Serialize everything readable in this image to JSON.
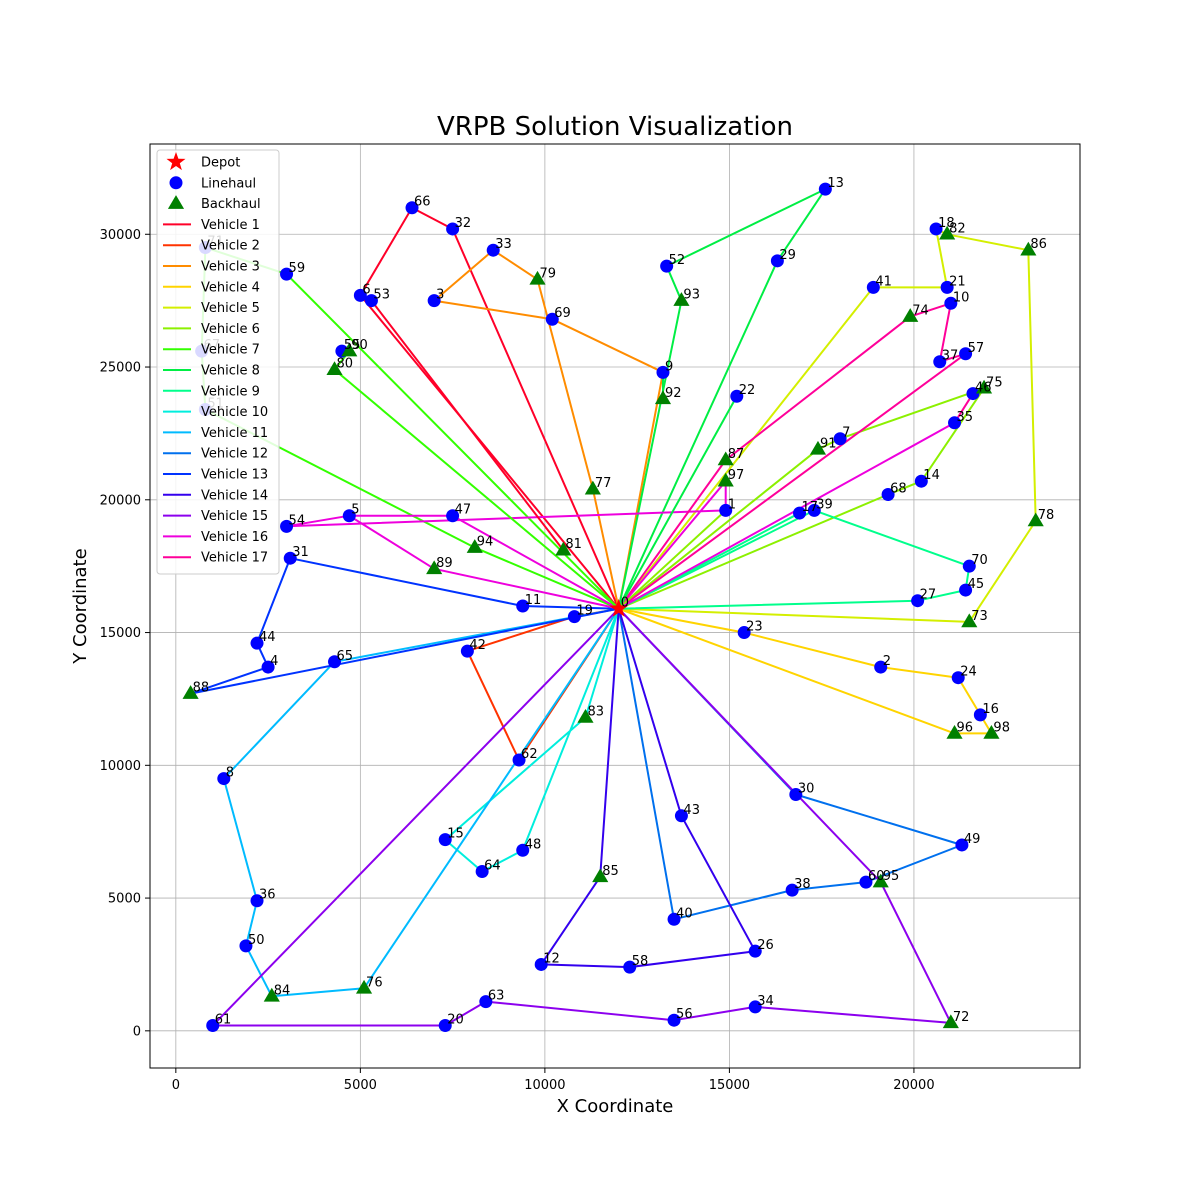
{
  "chart_data": {
    "type": "scatter",
    "title": "VRPB Solution Visualization",
    "xlabel": "X Coordinate",
    "ylabel": "Y Coordinate",
    "xlim": [
      -700,
      24500
    ],
    "ylim": [
      -1400,
      33400
    ],
    "xticks": [
      0,
      5000,
      10000,
      15000,
      20000
    ],
    "yticks": [
      0,
      5000,
      10000,
      15000,
      20000,
      25000,
      30000
    ],
    "grid": true,
    "legend_position": "top-left",
    "depot": {
      "id": "0",
      "x": 12000,
      "y": 15900,
      "color": "#ff0000"
    },
    "node_styles": {
      "linehaul": {
        "label": "Linehaul",
        "color": "#0000ff",
        "marker": "circle"
      },
      "backhaul": {
        "label": "Backhaul",
        "color": "#008000",
        "marker": "triangle"
      },
      "depot": {
        "label": "Depot",
        "color": "#ff0000",
        "marker": "star"
      }
    },
    "nodes": [
      {
        "id": "1",
        "x": 14900,
        "y": 19600,
        "type": "linehaul"
      },
      {
        "id": "2",
        "x": 19100,
        "y": 13700,
        "type": "linehaul"
      },
      {
        "id": "3",
        "x": 7000,
        "y": 27500,
        "type": "linehaul"
      },
      {
        "id": "4",
        "x": 2500,
        "y": 13700,
        "type": "linehaul"
      },
      {
        "id": "5",
        "x": 4700,
        "y": 19400,
        "type": "linehaul"
      },
      {
        "id": "6",
        "x": 5000,
        "y": 27700,
        "type": "linehaul"
      },
      {
        "id": "7",
        "x": 18000,
        "y": 22300,
        "type": "linehaul"
      },
      {
        "id": "8",
        "x": 1300,
        "y": 9500,
        "type": "linehaul"
      },
      {
        "id": "9",
        "x": 13200,
        "y": 24800,
        "type": "linehaul"
      },
      {
        "id": "10",
        "x": 21000,
        "y": 27400,
        "type": "linehaul"
      },
      {
        "id": "11",
        "x": 9400,
        "y": 16000,
        "type": "linehaul"
      },
      {
        "id": "12",
        "x": 9900,
        "y": 2500,
        "type": "linehaul"
      },
      {
        "id": "13",
        "x": 17600,
        "y": 31700,
        "type": "linehaul"
      },
      {
        "id": "14",
        "x": 20200,
        "y": 20700,
        "type": "linehaul"
      },
      {
        "id": "15",
        "x": 7300,
        "y": 7200,
        "type": "linehaul"
      },
      {
        "id": "16",
        "x": 21800,
        "y": 11900,
        "type": "linehaul"
      },
      {
        "id": "17",
        "x": 16900,
        "y": 19500,
        "type": "linehaul"
      },
      {
        "id": "18",
        "x": 20600,
        "y": 30200,
        "type": "linehaul"
      },
      {
        "id": "19",
        "x": 10800,
        "y": 15600,
        "type": "linehaul"
      },
      {
        "id": "20",
        "x": 7300,
        "y": 200,
        "type": "linehaul"
      },
      {
        "id": "21",
        "x": 20900,
        "y": 28000,
        "type": "linehaul"
      },
      {
        "id": "22",
        "x": 15200,
        "y": 23900,
        "type": "linehaul"
      },
      {
        "id": "23",
        "x": 15400,
        "y": 15000,
        "type": "linehaul"
      },
      {
        "id": "24",
        "x": 21200,
        "y": 13300,
        "type": "linehaul"
      },
      {
        "id": "26",
        "x": 15700,
        "y": 3000,
        "type": "linehaul"
      },
      {
        "id": "27",
        "x": 20100,
        "y": 16200,
        "type": "linehaul"
      },
      {
        "id": "29",
        "x": 16300,
        "y": 29000,
        "type": "linehaul"
      },
      {
        "id": "30",
        "x": 16800,
        "y": 8900,
        "type": "linehaul"
      },
      {
        "id": "31",
        "x": 3100,
        "y": 17800,
        "type": "linehaul"
      },
      {
        "id": "32",
        "x": 7500,
        "y": 30200,
        "type": "linehaul"
      },
      {
        "id": "33",
        "x": 8600,
        "y": 29400,
        "type": "linehaul"
      },
      {
        "id": "34",
        "x": 15700,
        "y": 900,
        "type": "linehaul"
      },
      {
        "id": "35",
        "x": 21100,
        "y": 22900,
        "type": "linehaul"
      },
      {
        "id": "36",
        "x": 2200,
        "y": 4900,
        "type": "linehaul"
      },
      {
        "id": "37",
        "x": 20700,
        "y": 25200,
        "type": "linehaul"
      },
      {
        "id": "38",
        "x": 16700,
        "y": 5300,
        "type": "linehaul"
      },
      {
        "id": "39",
        "x": 17300,
        "y": 19600,
        "type": "linehaul"
      },
      {
        "id": "40",
        "x": 13500,
        "y": 4200,
        "type": "linehaul"
      },
      {
        "id": "41",
        "x": 18900,
        "y": 28000,
        "type": "linehaul"
      },
      {
        "id": "42",
        "x": 7900,
        "y": 14300,
        "type": "linehaul"
      },
      {
        "id": "43",
        "x": 13700,
        "y": 8100,
        "type": "linehaul"
      },
      {
        "id": "44",
        "x": 2200,
        "y": 14600,
        "type": "linehaul"
      },
      {
        "id": "45",
        "x": 21400,
        "y": 16600,
        "type": "linehaul"
      },
      {
        "id": "46",
        "x": 21600,
        "y": 24000,
        "type": "linehaul"
      },
      {
        "id": "47",
        "x": 7500,
        "y": 19400,
        "type": "linehaul"
      },
      {
        "id": "48",
        "x": 9400,
        "y": 6800,
        "type": "linehaul"
      },
      {
        "id": "49",
        "x": 21300,
        "y": 7000,
        "type": "linehaul"
      },
      {
        "id": "50",
        "x": 1900,
        "y": 3200,
        "type": "linehaul"
      },
      {
        "id": "51",
        "x": 800,
        "y": 23400,
        "type": "linehaul"
      },
      {
        "id": "52",
        "x": 13300,
        "y": 28800,
        "type": "linehaul"
      },
      {
        "id": "53",
        "x": 5300,
        "y": 27500,
        "type": "linehaul"
      },
      {
        "id": "54",
        "x": 3000,
        "y": 19000,
        "type": "linehaul"
      },
      {
        "id": "55",
        "x": 4500,
        "y": 25600,
        "type": "linehaul"
      },
      {
        "id": "56",
        "x": 13500,
        "y": 400,
        "type": "linehaul"
      },
      {
        "id": "57",
        "x": 21400,
        "y": 25500,
        "type": "linehaul"
      },
      {
        "id": "58",
        "x": 12300,
        "y": 2400,
        "type": "linehaul"
      },
      {
        "id": "59",
        "x": 3000,
        "y": 28500,
        "type": "linehaul"
      },
      {
        "id": "60",
        "x": 18700,
        "y": 5600,
        "type": "linehaul"
      },
      {
        "id": "61",
        "x": 1000,
        "y": 200,
        "type": "linehaul"
      },
      {
        "id": "62",
        "x": 9300,
        "y": 10200,
        "type": "linehaul"
      },
      {
        "id": "63",
        "x": 8400,
        "y": 1100,
        "type": "linehaul"
      },
      {
        "id": "64",
        "x": 8300,
        "y": 6000,
        "type": "linehaul"
      },
      {
        "id": "65",
        "x": 4300,
        "y": 13900,
        "type": "linehaul"
      },
      {
        "id": "66",
        "x": 6400,
        "y": 31000,
        "type": "linehaul"
      },
      {
        "id": "67",
        "x": 700,
        "y": 25600,
        "type": "linehaul"
      },
      {
        "id": "68",
        "x": 19300,
        "y": 20200,
        "type": "linehaul"
      },
      {
        "id": "69",
        "x": 10200,
        "y": 26800,
        "type": "linehaul"
      },
      {
        "id": "70",
        "x": 21500,
        "y": 17500,
        "type": "linehaul"
      },
      {
        "id": "71",
        "x": 800,
        "y": 29500,
        "type": "linehaul"
      },
      {
        "id": "72",
        "x": 21000,
        "y": 300,
        "type": "backhaul"
      },
      {
        "id": "73",
        "x": 21500,
        "y": 15400,
        "type": "backhaul"
      },
      {
        "id": "74",
        "x": 19900,
        "y": 26900,
        "type": "backhaul"
      },
      {
        "id": "75",
        "x": 21900,
        "y": 24200,
        "type": "backhaul"
      },
      {
        "id": "76",
        "x": 5100,
        "y": 1600,
        "type": "backhaul"
      },
      {
        "id": "77",
        "x": 11300,
        "y": 20400,
        "type": "backhaul"
      },
      {
        "id": "78",
        "x": 23300,
        "y": 19200,
        "type": "backhaul"
      },
      {
        "id": "79",
        "x": 9800,
        "y": 28300,
        "type": "backhaul"
      },
      {
        "id": "80",
        "x": 4300,
        "y": 24900,
        "type": "backhaul"
      },
      {
        "id": "81",
        "x": 10500,
        "y": 18100,
        "type": "backhaul"
      },
      {
        "id": "82",
        "x": 20900,
        "y": 30000,
        "type": "backhaul"
      },
      {
        "id": "83",
        "x": 11100,
        "y": 11800,
        "type": "backhaul"
      },
      {
        "id": "84",
        "x": 2600,
        "y": 1300,
        "type": "backhaul"
      },
      {
        "id": "85",
        "x": 11500,
        "y": 5800,
        "type": "backhaul"
      },
      {
        "id": "86",
        "x": 23100,
        "y": 29400,
        "type": "backhaul"
      },
      {
        "id": "87",
        "x": 14900,
        "y": 21500,
        "type": "backhaul"
      },
      {
        "id": "88",
        "x": 400,
        "y": 12700,
        "type": "backhaul"
      },
      {
        "id": "89",
        "x": 7000,
        "y": 17400,
        "type": "backhaul"
      },
      {
        "id": "90",
        "x": 4700,
        "y": 25600,
        "type": "backhaul"
      },
      {
        "id": "91",
        "x": 17400,
        "y": 21900,
        "type": "backhaul"
      },
      {
        "id": "92",
        "x": 13200,
        "y": 23800,
        "type": "backhaul"
      },
      {
        "id": "93",
        "x": 13700,
        "y": 27500,
        "type": "backhaul"
      },
      {
        "id": "94",
        "x": 8100,
        "y": 18200,
        "type": "backhaul"
      },
      {
        "id": "95",
        "x": 19100,
        "y": 5600,
        "type": "backhaul"
      },
      {
        "id": "96",
        "x": 21100,
        "y": 11200,
        "type": "backhaul"
      },
      {
        "id": "97",
        "x": 14900,
        "y": 20700,
        "type": "backhaul"
      },
      {
        "id": "98",
        "x": 22100,
        "y": 11200,
        "type": "backhaul"
      }
    ],
    "series": [
      {
        "name": "Vehicle 1",
        "color": "#ff0029",
        "route": [
          "0",
          "6",
          "66",
          "32",
          "0"
        ]
      },
      {
        "name": "Vehicle 2",
        "color": "#ff3300",
        "route": [
          "0",
          "19",
          "42",
          "62",
          "0"
        ]
      },
      {
        "name": "Vehicle 3",
        "color": "#ff8c00",
        "route": [
          "0",
          "9",
          "69",
          "3",
          "33",
          "79",
          "77",
          "0"
        ]
      },
      {
        "name": "Vehicle 4",
        "color": "#ffd400",
        "route": [
          "0",
          "23",
          "2",
          "24",
          "16",
          "98",
          "96",
          "0"
        ]
      },
      {
        "name": "Vehicle 5",
        "color": "#d4ef00",
        "route": [
          "0",
          "41",
          "21",
          "18",
          "82",
          "86",
          "78",
          "73",
          "0"
        ]
      },
      {
        "name": "Vehicle 6",
        "color": "#8cf000",
        "route": [
          "0",
          "68",
          "14",
          "75",
          "7",
          "91",
          "0"
        ]
      },
      {
        "name": "Vehicle 7",
        "color": "#33ff00",
        "route": [
          "0",
          "59",
          "71",
          "67",
          "51",
          "94",
          "0"
        ]
      },
      {
        "name": "Vehicle 8",
        "color": "#00ee44",
        "route": [
          "0",
          "29",
          "13",
          "52",
          "93",
          "0"
        ]
      },
      {
        "name": "Vehicle 9",
        "color": "#00ff8c",
        "route": [
          "0",
          "39",
          "70",
          "45",
          "27",
          "0"
        ]
      },
      {
        "name": "Vehicle 10",
        "color": "#00eedd",
        "route": [
          "0",
          "48",
          "64",
          "15",
          "83",
          "0"
        ]
      },
      {
        "name": "Vehicle 11",
        "color": "#00bbff",
        "route": [
          "0",
          "65",
          "8",
          "36",
          "50",
          "84",
          "76",
          "99",
          "0"
        ]
      },
      {
        "name": "Vehicle 12",
        "color": "#0070ee",
        "route": [
          "0",
          "40",
          "38",
          "60",
          "49",
          "30",
          "0"
        ]
      },
      {
        "name": "Vehicle 13",
        "color": "#0033ff",
        "route": [
          "0",
          "11",
          "31",
          "44",
          "4",
          "88",
          "0"
        ]
      },
      {
        "name": "Vehicle 14",
        "color": "#3300ee",
        "route": [
          "0",
          "43",
          "26",
          "58",
          "12",
          "85",
          "0"
        ]
      },
      {
        "name": "Vehicle 15",
        "color": "#8c00ee",
        "route": [
          "0",
          "95",
          "72",
          "34",
          "56",
          "63",
          "20",
          "61",
          "0"
        ]
      },
      {
        "name": "Vehicle 16",
        "color": "#ee00dd",
        "route": [
          "0",
          "47",
          "5",
          "54",
          "1",
          "97",
          "0"
        ]
      },
      {
        "name": "Vehicle 17",
        "color": "#ff0099",
        "route": [
          "0",
          "57",
          "37",
          "10",
          "74",
          "87",
          "0"
        ]
      }
    ],
    "extra_segments": [
      {
        "series": "Vehicle 1",
        "from": "6",
        "to": "53"
      },
      {
        "series": "Vehicle 1",
        "from": "53",
        "to": "81"
      },
      {
        "series": "Vehicle 7",
        "from": "80",
        "to": "90"
      },
      {
        "series": "Vehicle 7",
        "from": "90",
        "to": "55"
      },
      {
        "series": "Vehicle 7",
        "from": "80",
        "to": "0"
      },
      {
        "series": "Vehicle 8",
        "from": "0",
        "to": "22"
      },
      {
        "series": "Vehicle 8",
        "from": "9",
        "to": "92"
      },
      {
        "series": "Vehicle 6",
        "from": "0",
        "to": "1"
      },
      {
        "series": "Vehicle 9",
        "from": "0",
        "to": "17"
      },
      {
        "series": "Vehicle 16",
        "from": "0",
        "to": "89"
      },
      {
        "series": "Vehicle 16",
        "from": "89",
        "to": "5"
      },
      {
        "series": "Vehicle 16",
        "from": "0",
        "to": "35"
      },
      {
        "series": "Vehicle 17",
        "from": "35",
        "to": "46"
      }
    ]
  }
}
